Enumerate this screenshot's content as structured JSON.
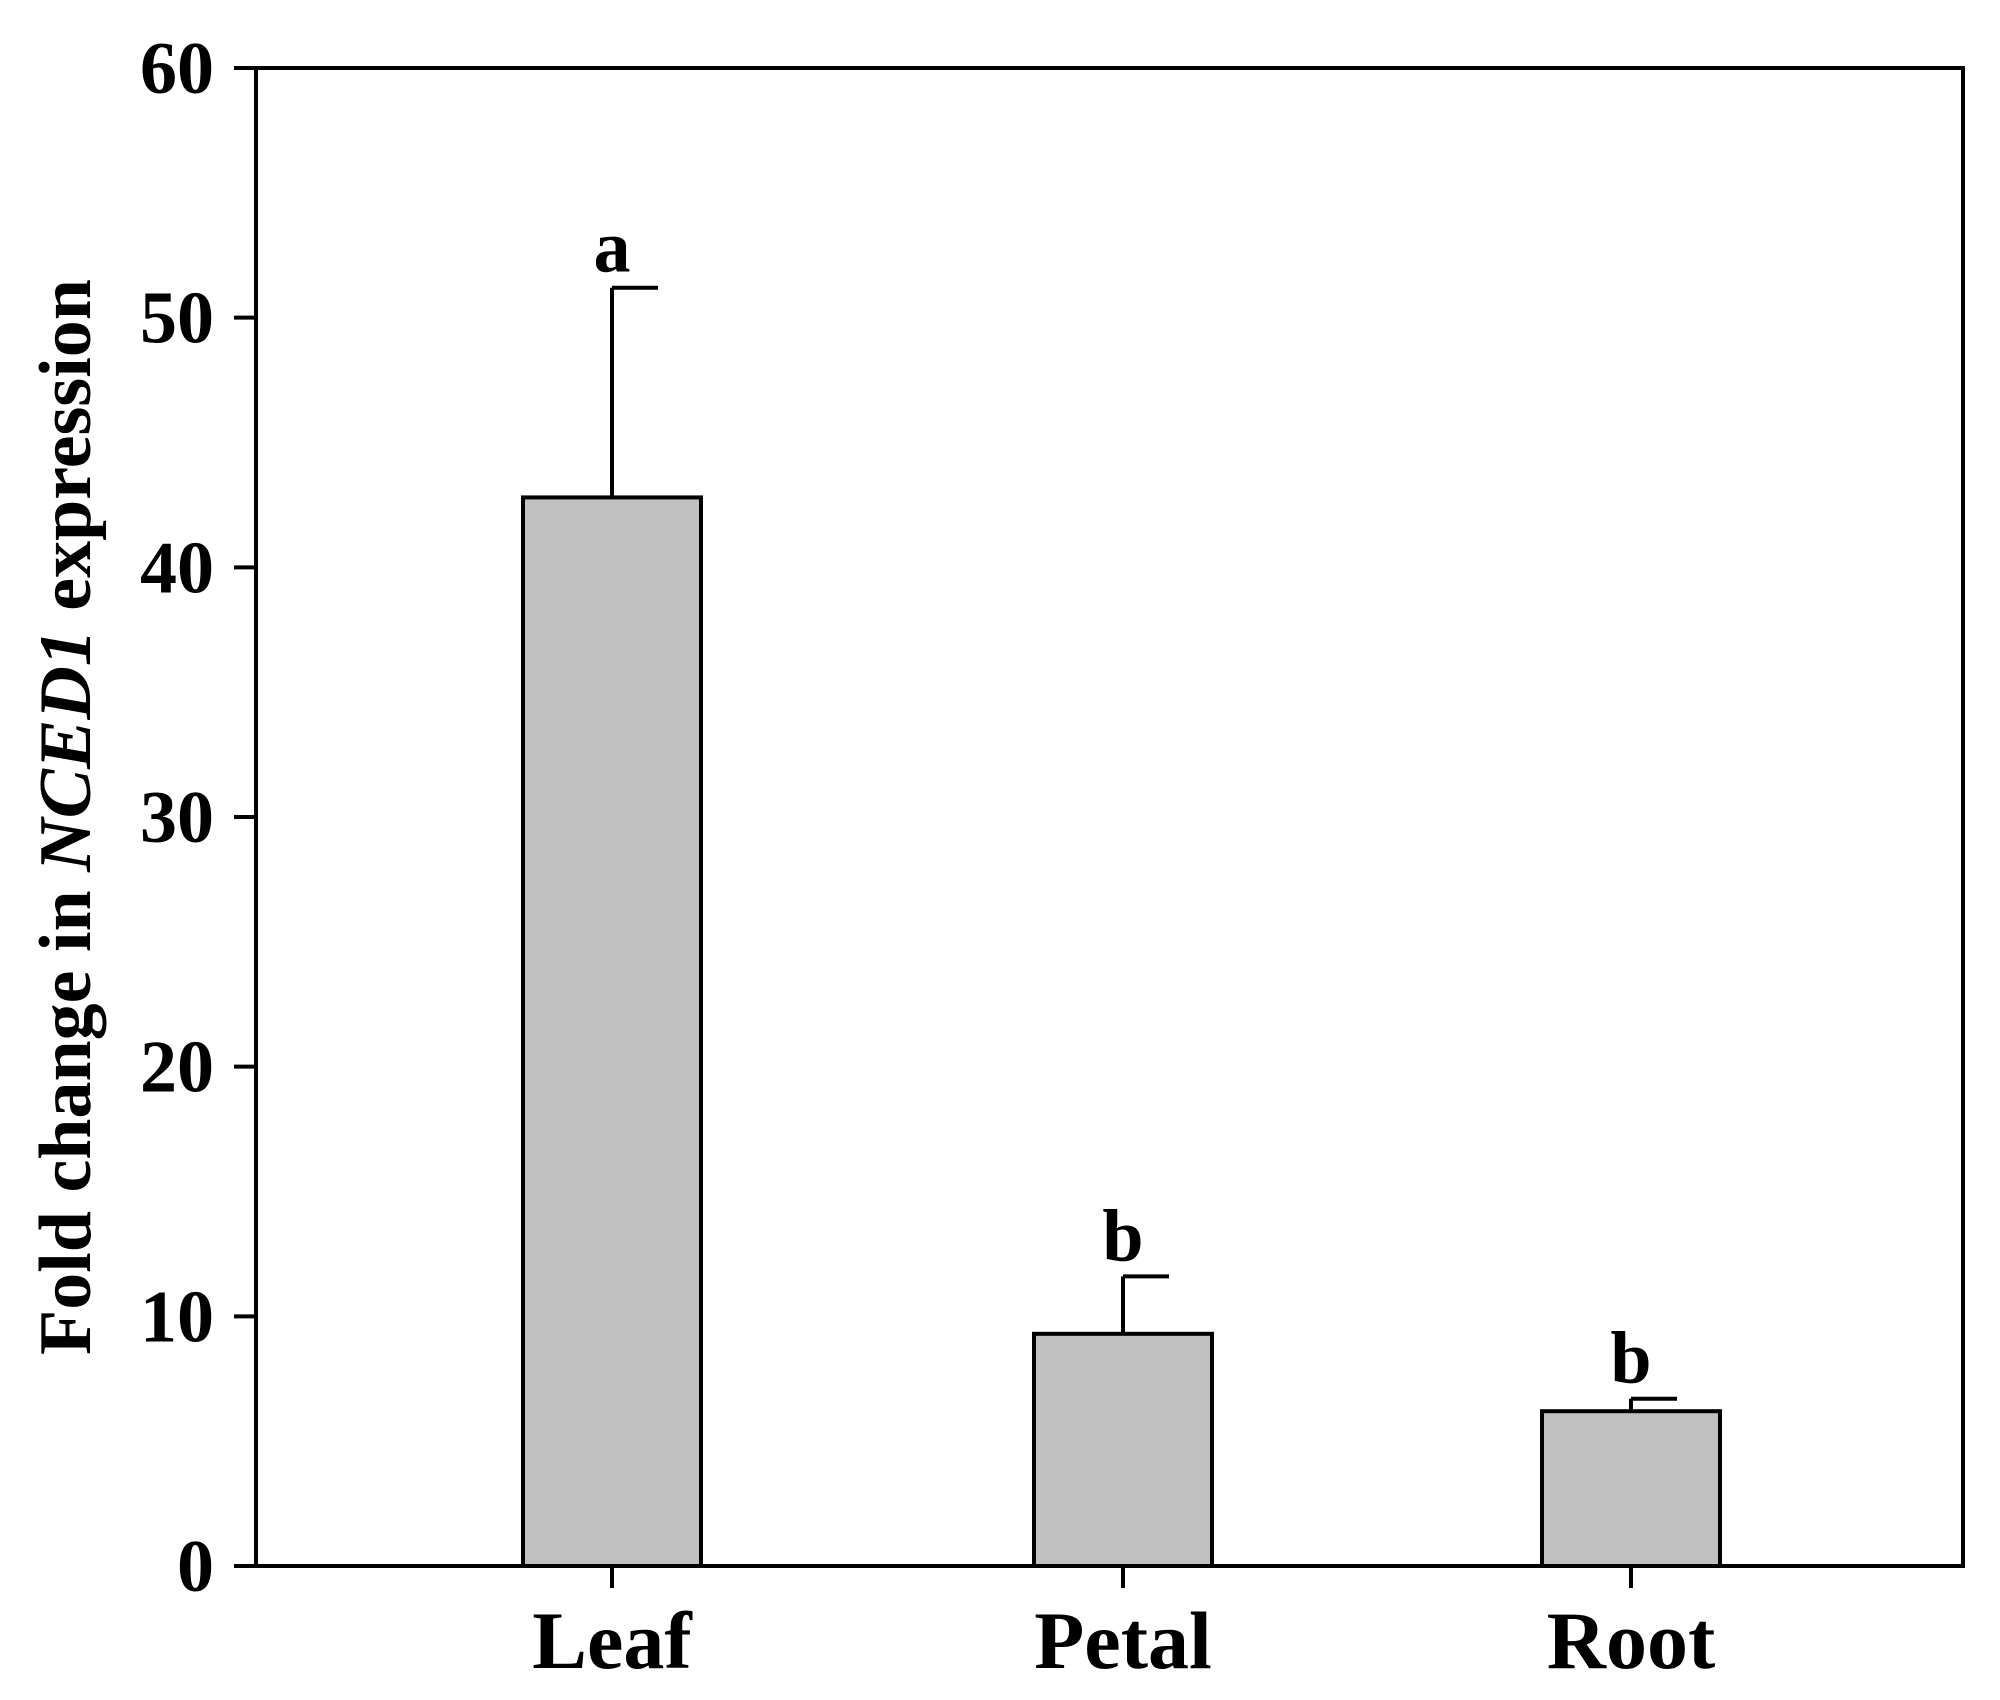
{
  "chart_data": {
    "type": "bar",
    "title": "",
    "xlabel": "",
    "ylabel": {
      "prefix": "Fold change in ",
      "gene": "NCED1",
      "suffix": " expression"
    },
    "categories": [
      "Leaf",
      "Petal",
      "Root"
    ],
    "values": [
      42.8,
      9.3,
      6.2
    ],
    "errors": [
      8.4,
      2.3,
      0.5
    ],
    "significance_letters": [
      "a",
      "b",
      "b"
    ],
    "ylim": [
      0,
      60
    ],
    "yticks": [
      0,
      10,
      20,
      30,
      40,
      50,
      60
    ],
    "grid": false,
    "legend": "none",
    "bar_color": "#c0c0c0",
    "edge_color": "#000000"
  }
}
